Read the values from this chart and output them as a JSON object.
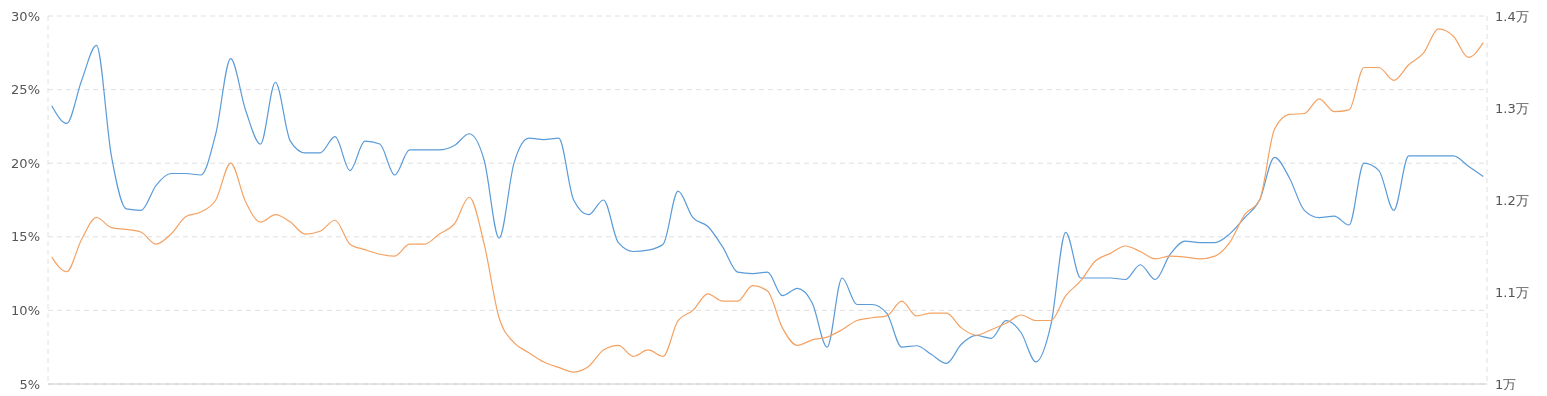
{
  "chart_data": {
    "type": "line",
    "categories": [
      null,
      null,
      null,
      null,
      null,
      null,
      null,
      null,
      null,
      null,
      null,
      null,
      null,
      null,
      null,
      null,
      null,
      null,
      null,
      null,
      null,
      null,
      null,
      null,
      null,
      null,
      null,
      null,
      null,
      null,
      null,
      null,
      null,
      null,
      null,
      null,
      null,
      null,
      null,
      null,
      null,
      null,
      null,
      null,
      null,
      null,
      null,
      null,
      null,
      null,
      null,
      null,
      null,
      null,
      null,
      null,
      null,
      null,
      null,
      null,
      null,
      null,
      null,
      null,
      null,
      null,
      null,
      null,
      null,
      null,
      null,
      null,
      null,
      null,
      null,
      null,
      null,
      null,
      null,
      null,
      null,
      null,
      null,
      null,
      null,
      null,
      null,
      null,
      null,
      null,
      null,
      null,
      null,
      null,
      null,
      null,
      null
    ],
    "series": [
      {
        "color": "#5b9bd8",
        "values": [
          23.9,
          22.7,
          25.6,
          28.0,
          20.5,
          16.9,
          16.8,
          18.5,
          19.3,
          19.3,
          19.2,
          22.0,
          27.1,
          23.6,
          21.3,
          25.5,
          21.5,
          20.7,
          20.7,
          21.8,
          19.5,
          21.5,
          21.3,
          19.2,
          20.9,
          20.9,
          20.9,
          21.2,
          22.0,
          20.2,
          14.9,
          20.0,
          21.7,
          21.6,
          21.7,
          17.5,
          16.5,
          17.5,
          14.6,
          14.0,
          14.1,
          14.5,
          18.1,
          16.3,
          15.7,
          14.3,
          12.6,
          12.5,
          12.6,
          11.0,
          11.5,
          10.5,
          7.5,
          12.2,
          10.4,
          10.4,
          9.8,
          7.5,
          7.6,
          7.0,
          6.4,
          7.7,
          8.3,
          8.1,
          9.3,
          8.5,
          6.5,
          9.0,
          15.3,
          12.2,
          12.2,
          12.2,
          12.1,
          13.1,
          12.1,
          13.8,
          14.7,
          14.6,
          14.6,
          15.2,
          16.3,
          17.5,
          20.4,
          19.0,
          16.8,
          16.3,
          16.4,
          15.8,
          20.0,
          19.5,
          16.8,
          20.5,
          20.5,
          20.5,
          20.5,
          19.8,
          19.1
        ]
      },
      {
        "color": "#f4a263",
        "axis": "y2",
        "values": [
          1.138,
          1.122,
          1.157,
          1.181,
          1.17,
          1.168,
          1.165,
          1.152,
          1.163,
          1.182,
          1.187,
          1.2,
          1.24,
          1.198,
          1.176,
          1.184,
          1.176,
          1.163,
          1.166,
          1.178,
          1.152,
          1.146,
          1.141,
          1.139,
          1.152,
          1.152,
          1.163,
          1.174,
          1.203,
          1.152,
          1.072,
          1.045,
          1.034,
          1.024,
          1.018,
          1.013,
          1.019,
          1.037,
          1.042,
          1.03,
          1.037,
          1.03,
          1.069,
          1.08,
          1.098,
          1.09,
          1.09,
          1.107,
          1.101,
          1.061,
          1.042,
          1.048,
          1.051,
          1.059,
          1.069,
          1.072,
          1.074,
          1.09,
          1.074,
          1.077,
          1.077,
          1.061,
          1.053,
          1.059,
          1.066,
          1.075,
          1.069,
          1.069,
          1.096,
          1.112,
          1.134,
          1.142,
          1.15,
          1.144,
          1.136,
          1.139,
          1.138,
          1.136,
          1.139,
          1.154,
          1.184,
          1.2,
          1.277,
          1.293,
          1.294,
          1.31,
          1.296,
          1.298,
          1.344,
          1.344,
          1.33,
          1.347,
          1.36,
          1.386,
          1.378,
          1.355,
          1.371
        ]
      }
    ],
    "ylim": [
      5,
      30
    ],
    "yticks": [
      {
        "value": 5,
        "label": "5%"
      },
      {
        "value": 10,
        "label": "10%"
      },
      {
        "value": 15,
        "label": "15%"
      },
      {
        "value": 20,
        "label": "20%"
      },
      {
        "value": 25,
        "label": "25%"
      },
      {
        "value": 30,
        "label": "30%"
      }
    ],
    "y2lim": [
      1,
      1.4
    ],
    "y2ticks": [
      {
        "value": 1,
        "label": "1万"
      },
      {
        "value": 1.1,
        "label": "1.1万"
      },
      {
        "value": 1.2,
        "label": "1.2万"
      },
      {
        "value": 1.3,
        "label": "1.3万"
      },
      {
        "value": 1.4,
        "label": "1.4万"
      }
    ],
    "grid": true,
    "marker": "none",
    "line_style": "solid"
  }
}
